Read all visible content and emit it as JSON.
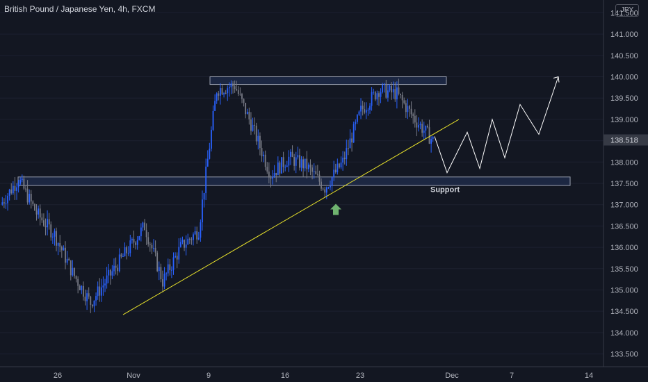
{
  "header": {
    "title": "British Pound / Japanese Yen, 4h, FXCM",
    "currency": "JPY"
  },
  "colors": {
    "background": "#131722",
    "up": "#2962ff",
    "down": "#787b86",
    "trendline": "#e8e22b",
    "zone_fill": "#1e2a48",
    "zone_stroke": "#9aa0b0",
    "arrow": "#6fb36f",
    "forecast": "#ffffff",
    "price_tag": "#363a45"
  },
  "chart_data": {
    "type": "candlestick",
    "title": "British Pound / Japanese Yen, 4h, FXCM",
    "ylim": [
      133.2,
      141.8
    ],
    "y_ticks": [
      "133.500",
      "134.000",
      "134.500",
      "135.000",
      "135.500",
      "136.000",
      "136.500",
      "137.000",
      "137.500",
      "138.000",
      "138.500",
      "139.000",
      "139.500",
      "140.000",
      "140.500",
      "141.000",
      "141.500"
    ],
    "x_ticks": [
      "26",
      "Nov",
      "9",
      "16",
      "23",
      "Dec",
      "7",
      "14"
    ],
    "last_price": "138.518",
    "segments": [
      [
        137.0,
        137.6
      ],
      [
        137.6,
        136.8
      ],
      [
        136.8,
        136.3
      ],
      [
        136.3,
        135.4
      ],
      [
        135.4,
        134.7
      ],
      [
        134.7,
        135.3
      ],
      [
        135.3,
        135.9
      ],
      [
        135.9,
        136.5
      ],
      [
        136.5,
        135.2
      ],
      [
        135.2,
        136.0
      ],
      [
        136.0,
        136.4
      ],
      [
        136.4,
        139.7
      ],
      [
        139.7,
        139.8
      ],
      [
        139.8,
        138.8
      ],
      [
        138.8,
        137.7
      ],
      [
        137.7,
        138.1
      ],
      [
        138.1,
        137.9
      ],
      [
        137.9,
        137.4
      ],
      [
        137.4,
        138.0
      ],
      [
        138.0,
        139.2
      ],
      [
        139.2,
        139.7
      ],
      [
        139.7,
        139.6
      ],
      [
        139.6,
        139.0
      ],
      [
        139.0,
        138.5
      ]
    ],
    "resistance_zone": {
      "y_top": 140.0,
      "y_bottom": 139.82
    },
    "support_zone": {
      "y_top": 137.65,
      "y_bottom": 137.45,
      "label": "Support"
    },
    "trendline": {
      "y_start": 134.42,
      "y_end": 139.0
    },
    "forecast_path": [
      138.6,
      137.75,
      138.7,
      137.85,
      139.0,
      138.1,
      139.35,
      138.65,
      140.0
    ]
  }
}
